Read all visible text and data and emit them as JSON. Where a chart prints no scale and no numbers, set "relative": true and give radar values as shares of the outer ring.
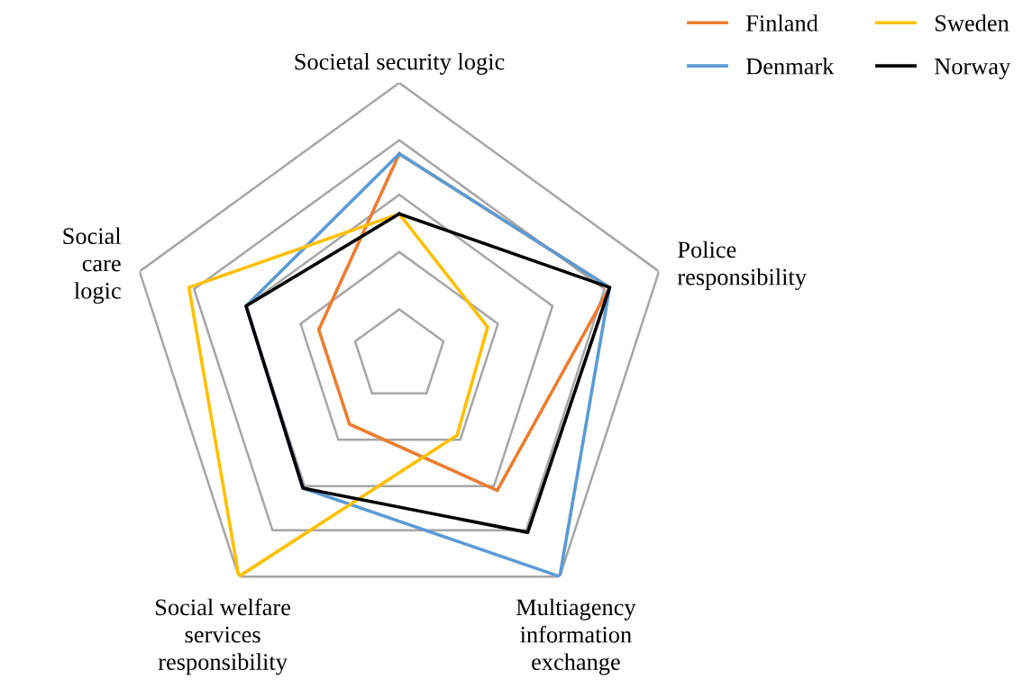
{
  "chart_data": {
    "type": "radar",
    "relative": true,
    "categories": [
      "Societal security logic",
      "Police\nresponsibility",
      "Multiagency\ninformation\nexchange",
      "Social welfare\nservices\nresponsibility",
      "Social\ncare\nlogic"
    ],
    "series": [
      {
        "name": "Finland",
        "color": "#ed7d31",
        "values": [
          0.74,
          0.81,
          0.61,
          0.31,
          0.31
        ]
      },
      {
        "name": "Denmark",
        "color": "#5b9bd5",
        "values": [
          0.74,
          0.81,
          1.0,
          0.6,
          0.59
        ]
      },
      {
        "name": "Sweden",
        "color": "#ffc000",
        "values": [
          0.52,
          0.34,
          0.36,
          1.0,
          0.81
        ]
      },
      {
        "name": "Norway",
        "color": "#000000",
        "values": [
          0.52,
          0.81,
          0.8,
          0.6,
          0.59
        ]
      }
    ],
    "grid": true,
    "legend": "top right",
    "marker": "none",
    "line_style": "solid"
  }
}
